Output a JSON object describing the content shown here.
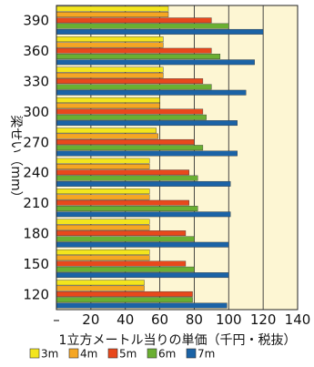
{
  "chart_data": {
    "type": "bar",
    "orientation": "horizontal",
    "categories": [
      "390",
      "360",
      "330",
      "300",
      "270",
      "240",
      "210",
      "180",
      "150",
      "120"
    ],
    "series": [
      {
        "name": "3m",
        "color": "#f3e51d",
        "values": [
          65,
          62,
          62,
          60,
          58,
          54,
          54,
          54,
          54,
          51
        ]
      },
      {
        "name": "4m",
        "color": "#f5a623",
        "values": [
          65,
          62,
          62,
          60,
          59,
          54,
          54,
          54,
          54,
          51
        ]
      },
      {
        "name": "5m",
        "color": "#e8481c",
        "values": [
          90,
          90,
          85,
          85,
          80,
          77,
          77,
          75,
          75,
          79
        ]
      },
      {
        "name": "6m",
        "color": "#6aaf32",
        "values": [
          100,
          95,
          90,
          87,
          85,
          82,
          82,
          80,
          80,
          79
        ]
      },
      {
        "name": "7m",
        "color": "#1b63a6",
        "values": [
          120,
          115,
          110,
          105,
          105,
          101,
          101,
          100,
          100,
          99
        ]
      }
    ],
    "x_ticks": [
      "–",
      "20",
      "40",
      "60",
      "80",
      "100",
      "120",
      "140"
    ],
    "xlim": [
      0,
      140
    ],
    "xlabel": "1立方メートル当りの単価（千円・税抜）",
    "ylabel": "梁せい（mm）",
    "grid": true,
    "legend_position": "bottom",
    "background_color": "#fdf6d3"
  }
}
